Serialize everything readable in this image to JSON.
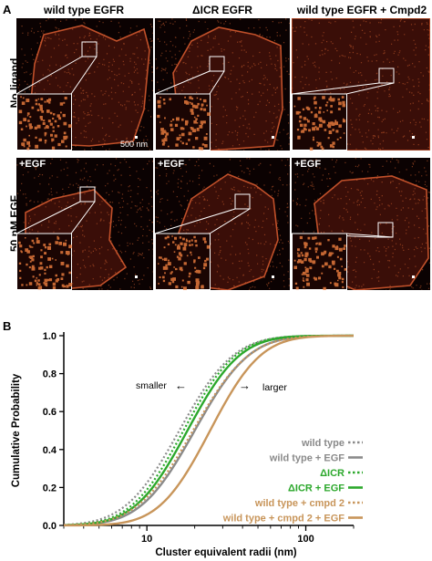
{
  "panel_a": {
    "letter": "A",
    "columns": [
      "wild type EGFR",
      "ΔICR EGFR",
      "wild type EGFR + Cmpd2"
    ],
    "rows": [
      "No ligand",
      "50 nM EGF"
    ],
    "egf_tag": "+EGF",
    "scale_bar_label": "500 nm"
  },
  "panel_b": {
    "letter": "B",
    "annotation_smaller": "smaller",
    "annotation_larger": "larger",
    "arrow_left": "←",
    "arrow_right": "→"
  },
  "chart_data": {
    "type": "line",
    "xlabel": "Cluster equivalent radii (nm)",
    "ylabel": "Cumulative Probability",
    "x_scale": "log",
    "xlim": [
      3,
      200
    ],
    "ylim": [
      0,
      1.0
    ],
    "x_ticks": [
      10,
      100
    ],
    "x_tick_labels": [
      "10",
      "100"
    ],
    "y_ticks": [
      0.0,
      0.2,
      0.4,
      0.6,
      0.8,
      1.0
    ],
    "y_tick_labels": [
      "0.0",
      "0.2",
      "0.4",
      "0.6",
      "0.8",
      "1.0"
    ],
    "legend_position": "bottom-right",
    "series": [
      {
        "name": "wild type",
        "color": "#8a8a8a",
        "style": "dotted",
        "median": 16.0,
        "spread": 0.62
      },
      {
        "name": "wild type + EGF",
        "color": "#8a8a8a",
        "style": "solid",
        "median": 20.0,
        "spread": 0.62
      },
      {
        "name": "ΔICR",
        "color": "#2ca82c",
        "style": "dotted",
        "median": 17.0,
        "spread": 0.6
      },
      {
        "name": "ΔICR + EGF",
        "color": "#2ca82c",
        "style": "solid",
        "median": 18.0,
        "spread": 0.6
      },
      {
        "name": "wild type + cmpd 2",
        "color": "#c8955a",
        "style": "dotted",
        "median": 19.5,
        "spread": 0.64
      },
      {
        "name": "wild type + cmpd 2 + EGF",
        "color": "#c8955a",
        "style": "solid",
        "median": 25.0,
        "spread": 0.58
      }
    ]
  }
}
